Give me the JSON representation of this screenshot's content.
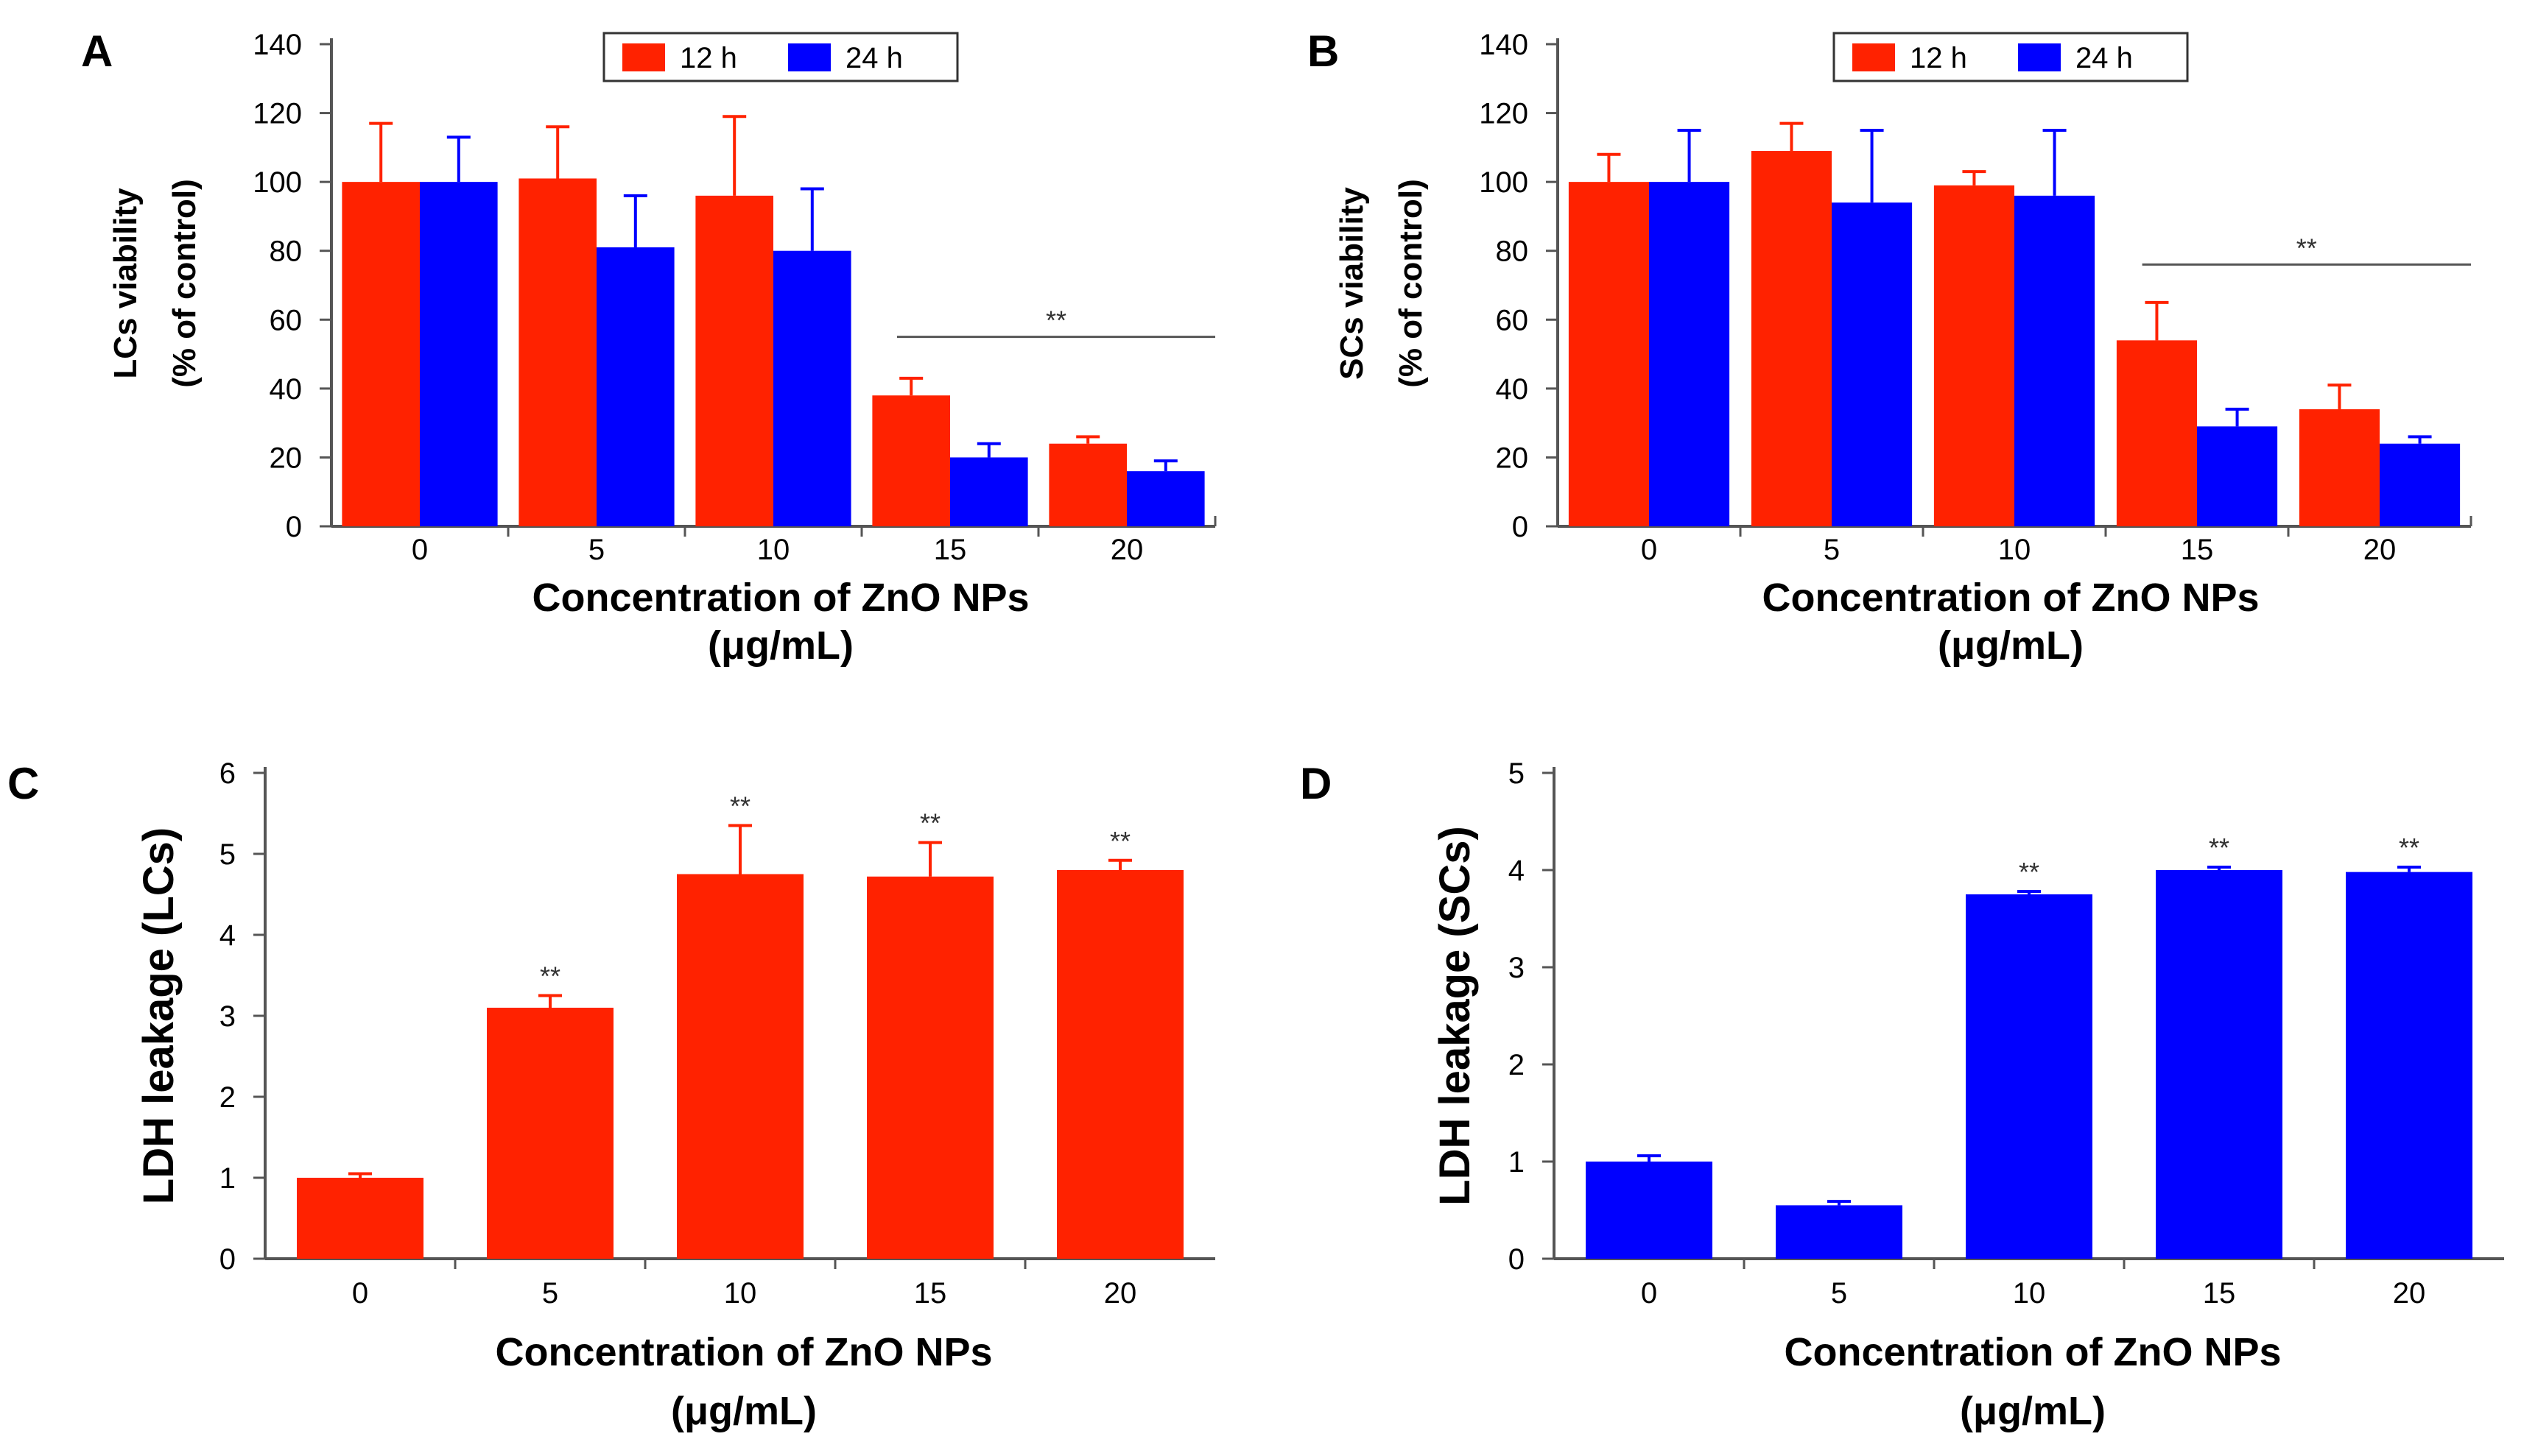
{
  "chart_data": [
    {
      "panel_label": "A",
      "type": "bar",
      "ylabel_line1": "LCs viability",
      "ylabel_line2": "(% of control)",
      "xlabel_line1": "Concentration of ZnO NPs",
      "xlabel_line2": "(μg/mL)",
      "categories": [
        "0",
        "5",
        "10",
        "15",
        "20"
      ],
      "yticks": [
        "0",
        "20",
        "40",
        "60",
        "80",
        "100",
        "120",
        "140"
      ],
      "ylim": [
        0,
        140
      ],
      "legend": {
        "placement": "top-center"
      },
      "series": [
        {
          "name": "12 h",
          "color": "#ff2200",
          "values": [
            100,
            101,
            96,
            38,
            24
          ],
          "errors": [
            17,
            15,
            23,
            5,
            2
          ]
        },
        {
          "name": "24 h",
          "color": "#0000ff",
          "values": [
            100,
            81,
            80,
            20,
            16
          ],
          "errors": [
            13,
            15,
            18,
            4,
            3
          ]
        }
      ],
      "significance": {
        "label": "**",
        "from_category": 3,
        "to_category": 4,
        "y": 55
      }
    },
    {
      "panel_label": "B",
      "type": "bar",
      "ylabel_line1": "SCs viability",
      "ylabel_line2": "(% of control)",
      "xlabel_line1": "Concentration of ZnO NPs",
      "xlabel_line2": "(μg/mL)",
      "categories": [
        "0",
        "5",
        "10",
        "15",
        "20"
      ],
      "yticks": [
        "0",
        "20",
        "40",
        "60",
        "80",
        "100",
        "120",
        "140"
      ],
      "ylim": [
        0,
        140
      ],
      "legend": {
        "placement": "top-center"
      },
      "series": [
        {
          "name": "12 h",
          "color": "#ff2200",
          "values": [
            100,
            109,
            99,
            54,
            34
          ],
          "errors": [
            8,
            8,
            4,
            11,
            7
          ]
        },
        {
          "name": "24 h",
          "color": "#0000ff",
          "values": [
            100,
            94,
            96,
            29,
            24
          ],
          "errors": [
            15,
            21,
            19,
            5,
            2
          ]
        }
      ],
      "significance": {
        "label": "**",
        "from_category": 3,
        "to_category": 4,
        "y": 76
      }
    },
    {
      "panel_label": "C",
      "type": "bar",
      "ylabel": "LDH leakage (LCs)",
      "xlabel_line1": "Concentration of ZnO NPs",
      "xlabel_line2": "(μg/mL)",
      "categories": [
        "0",
        "5",
        "10",
        "15",
        "20"
      ],
      "yticks": [
        "0",
        "1",
        "2",
        "3",
        "4",
        "5",
        "6"
      ],
      "ylim": [
        0,
        6
      ],
      "series": [
        {
          "name": "LCs",
          "color": "#ff2200",
          "values": [
            1.0,
            3.1,
            4.75,
            4.72,
            4.8
          ],
          "errors": [
            0.05,
            0.15,
            0.6,
            0.42,
            0.12
          ]
        }
      ],
      "sig_labels": [
        "",
        "**",
        "**",
        "**",
        "**"
      ]
    },
    {
      "panel_label": "D",
      "type": "bar",
      "ylabel": "LDH leakage (SCs)",
      "xlabel_line1": "Concentration of ZnO NPs",
      "xlabel_line2": "(μg/mL)",
      "categories": [
        "0",
        "5",
        "10",
        "15",
        "20"
      ],
      "yticks": [
        "0",
        "1",
        "2",
        "3",
        "4",
        "5"
      ],
      "ylim": [
        0,
        5
      ],
      "series": [
        {
          "name": "SCs",
          "color": "#0000ff",
          "values": [
            1.0,
            0.55,
            3.75,
            4.0,
            3.98
          ],
          "errors": [
            0.06,
            0.04,
            0.03,
            0.03,
            0.05
          ]
        }
      ],
      "sig_labels": [
        "",
        "",
        "**",
        "**",
        "**"
      ]
    }
  ]
}
